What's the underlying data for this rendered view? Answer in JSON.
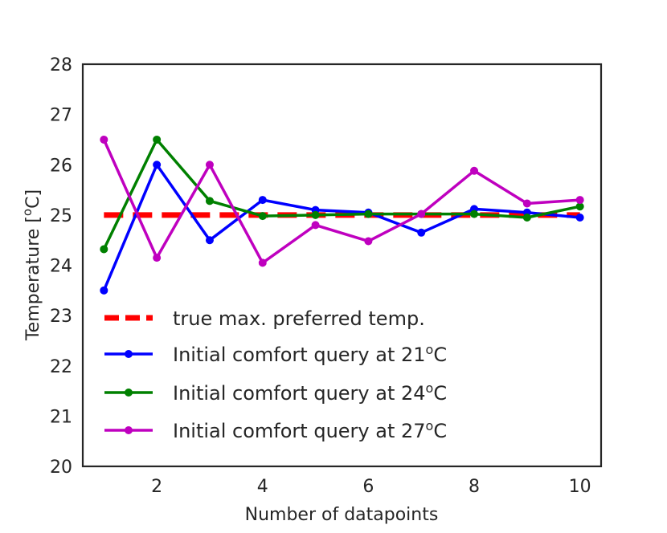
{
  "chart_data": {
    "type": "line",
    "title": "",
    "xlabel": "Number of datapoints",
    "ylabel_main": "Temperature [",
    "ylabel_sup": "o",
    "ylabel_end": "C]",
    "xlim": [
      0.6,
      10.4
    ],
    "ylim": [
      20,
      28
    ],
    "xticks": [
      2,
      4,
      6,
      8,
      10
    ],
    "yticks": [
      20,
      21,
      22,
      23,
      24,
      25,
      26,
      27,
      28
    ],
    "grid": false,
    "legend_position": "lower-left",
    "reference_line": {
      "name": "true max. preferred temp.",
      "x": [
        1,
        10
      ],
      "y": [
        25,
        25
      ],
      "color": "#ff0000",
      "style": "dashed"
    },
    "series": [
      {
        "name": "Initial comfort query at 21oC",
        "legend_main": "Initial comfort query at 21",
        "legend_sup": "o",
        "legend_end": "C",
        "color": "#0000ff",
        "x": [
          1,
          2,
          3,
          4,
          5,
          6,
          7,
          8,
          9,
          10
        ],
        "values": [
          23.5,
          26.0,
          24.5,
          25.3,
          25.1,
          25.05,
          24.65,
          25.12,
          25.05,
          24.95
        ]
      },
      {
        "name": "Initial comfort query at 24oC",
        "legend_main": "Initial comfort query at 24",
        "legend_sup": "o",
        "legend_end": "C",
        "color": "#008000",
        "x": [
          1,
          2,
          3,
          4,
          5,
          6,
          7,
          8,
          9,
          10
        ],
        "values": [
          24.32,
          26.5,
          25.28,
          24.98,
          25.0,
          25.02,
          25.02,
          25.02,
          24.95,
          25.17
        ]
      },
      {
        "name": "Initial comfort query at 27oC",
        "legend_main": "Initial comfort query at 27",
        "legend_sup": "o",
        "legend_end": "C",
        "color": "#bf00bf",
        "x": [
          1,
          2,
          3,
          4,
          5,
          6,
          7,
          8,
          9,
          10
        ],
        "values": [
          26.5,
          24.15,
          26.0,
          24.05,
          24.8,
          24.48,
          25.02,
          25.88,
          25.23,
          25.3
        ]
      }
    ]
  }
}
